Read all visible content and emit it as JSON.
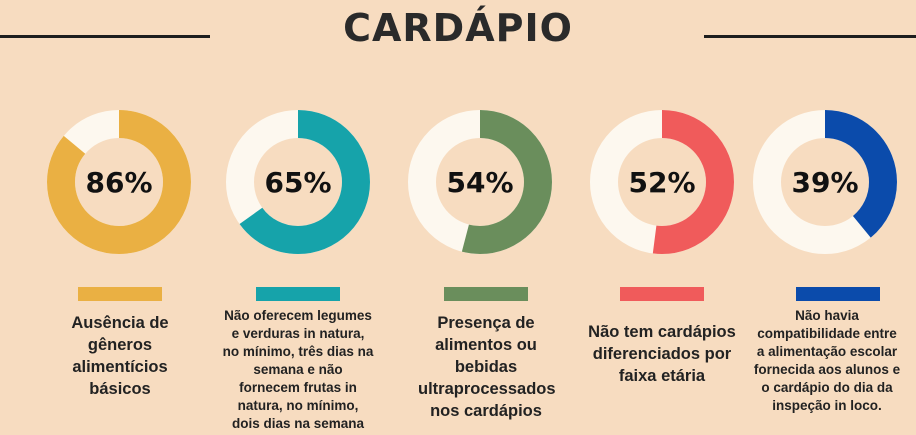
{
  "title": "CARDÁPIO",
  "colors": {
    "background": "#f7dcc0",
    "track": "#fdf8ef",
    "items": [
      "#eab043",
      "#16a3aa",
      "#6a8e5c",
      "#f05b5b",
      "#0b4bab"
    ]
  },
  "chart_data": {
    "type": "pie",
    "variant": "donut",
    "items": [
      {
        "value": 86,
        "display": "86%",
        "label": "Ausência de gêneros alimentícios básicos"
      },
      {
        "value": 65,
        "display": "65%",
        "label": "Não oferecem legumes e verduras in natura, no mínimo, três dias na semana e não fornecem frutas in natura, no mínimo, dois dias na semana"
      },
      {
        "value": 54,
        "display": "54%",
        "label": "Presença de alimentos ou bebidas ultraprocessados nos cardápios"
      },
      {
        "value": 52,
        "display": "52%",
        "label": "Não tem cardápios diferenciados por faixa etária"
      },
      {
        "value": 39,
        "display": "39%",
        "label": "Não havia compatibilidade entre a alimentação escolar fornecida aos alunos e o cardápio do dia da inspeção in loco."
      }
    ]
  }
}
